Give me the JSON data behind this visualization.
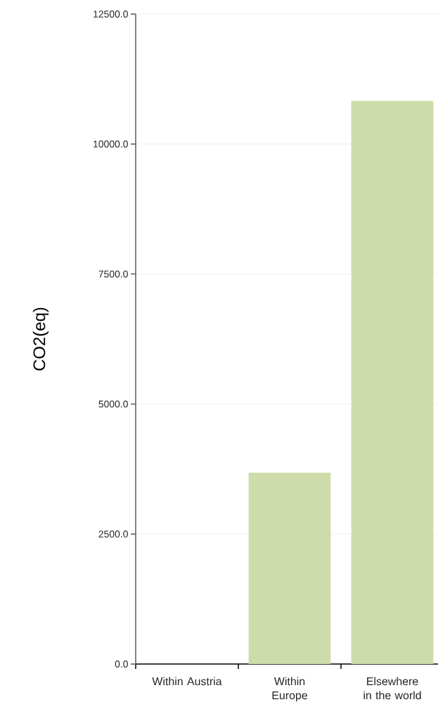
{
  "chart_data": {
    "type": "bar",
    "ylabel": "CO2(eq)",
    "categories": [
      "Within Austria",
      "Within Europe",
      "Elsewhere in the world"
    ],
    "values": [
      0,
      3680,
      10830
    ],
    "color": "#cddcaa",
    "ylim": [
      0,
      12500
    ],
    "yticks": [
      {
        "value": 0,
        "label": "0.0"
      },
      {
        "value": 2500,
        "label": "2500.0"
      },
      {
        "value": 5000,
        "label": "5000.0"
      },
      {
        "value": 7500,
        "label": "7500.0"
      },
      {
        "value": 10000,
        "label": "10000.0"
      },
      {
        "value": 12500,
        "label": "12500.0"
      }
    ],
    "grid": "y"
  }
}
